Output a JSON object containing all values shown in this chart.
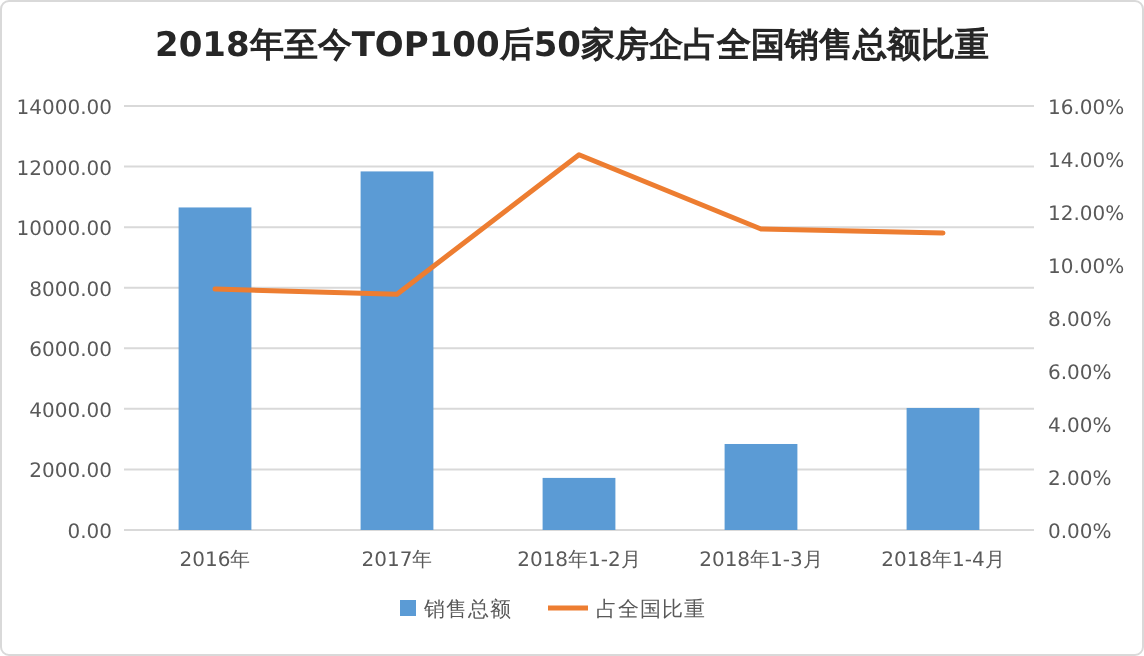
{
  "chart_data": {
    "type": "bar",
    "title": "2018年至今TOP100后50家房企占全国销售总额比重",
    "categories": [
      "2016年",
      "2017年",
      "2018年1-2月",
      "2018年1-3月",
      "2018年1-4月"
    ],
    "series": [
      {
        "name": "销售总额",
        "color": "#5b9bd5",
        "values": [
          10650,
          11840,
          1720,
          2840,
          4030
        ]
      },
      {
        "name": "占全国比重",
        "type": "line",
        "axis": "y2",
        "color": "#ed7d31",
        "values": [
          9.09,
          8.9,
          14.16,
          11.36,
          11.21
        ]
      }
    ],
    "ylim": [
      0,
      14000
    ],
    "yticks": [
      {
        "value": 0,
        "label": "0.00"
      },
      {
        "value": 2000,
        "label": "2000.00"
      },
      {
        "value": 4000,
        "label": "4000.00"
      },
      {
        "value": 6000,
        "label": "6000.00"
      },
      {
        "value": 8000,
        "label": "8000.00"
      },
      {
        "value": 10000,
        "label": "10000.00"
      },
      {
        "value": 12000,
        "label": "12000.00"
      },
      {
        "value": 14000,
        "label": "14000.00"
      }
    ],
    "y2lim": [
      0,
      16
    ],
    "y2ticks": [
      {
        "value": 0,
        "label": "0.00%"
      },
      {
        "value": 2,
        "label": "2.00%"
      },
      {
        "value": 4,
        "label": "4.00%"
      },
      {
        "value": 6,
        "label": "6.00%"
      },
      {
        "value": 8,
        "label": "8.00%"
      },
      {
        "value": 10,
        "label": "10.00%"
      },
      {
        "value": 12,
        "label": "12.00%"
      },
      {
        "value": 14,
        "label": "14.00%"
      },
      {
        "value": 16,
        "label": "16.00%"
      }
    ],
    "grid": "y",
    "legend": "bottom",
    "marker": "none",
    "line_style": "solid"
  }
}
